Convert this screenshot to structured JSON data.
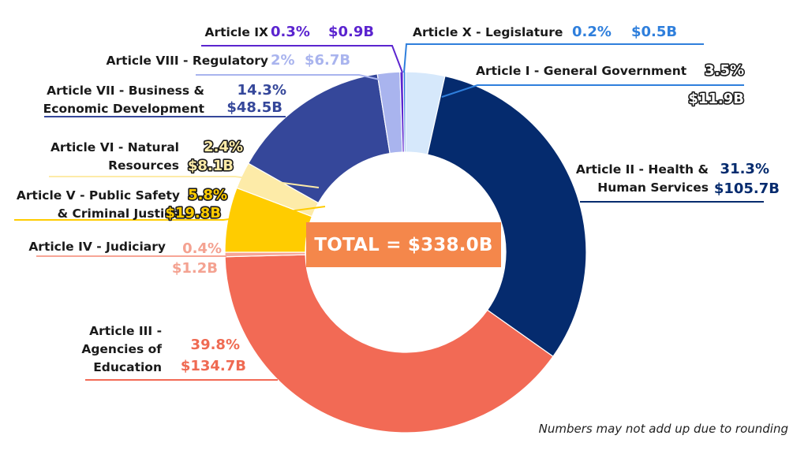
{
  "chart_data": {
    "type": "pie",
    "variant": "donut",
    "total_label": "TOTAL = $338.0B",
    "footnote": "Numbers may not add up due to rounding",
    "slices": [
      {
        "key": "article_i",
        "label_lines": [
          "Article I - General Government"
        ],
        "percent": 3.5,
        "percent_text": "3.5%",
        "amount_text": "$11.9B",
        "color": "#d6e8fb",
        "label_color": "#ffffff",
        "outlined": true
      },
      {
        "key": "article_ii",
        "label_lines": [
          "Article II - Health &",
          "Human Services"
        ],
        "percent": 31.3,
        "percent_text": "31.3%",
        "amount_text": "$105.7B",
        "color": "#052b6e",
        "label_color": "#052b6e",
        "outlined": false
      },
      {
        "key": "article_iii",
        "label_lines": [
          "Article III -",
          "Agencies of",
          "Education"
        ],
        "percent": 39.8,
        "percent_text": "39.8%",
        "amount_text": "$134.7B",
        "color": "#f26a55",
        "label_color": "#ef6a52",
        "outlined": false
      },
      {
        "key": "article_iv",
        "label_lines": [
          "Article IV - Judiciary"
        ],
        "percent": 0.4,
        "percent_text": "0.4%",
        "amount_text": "$1.2B",
        "color": "#f7a596",
        "label_color": "#f4a291",
        "outlined": false
      },
      {
        "key": "article_v",
        "label_lines": [
          "Article V - Public Safety",
          "& Criminal Justice"
        ],
        "percent": 5.8,
        "percent_text": "5.8%",
        "amount_text": "$19.8B",
        "color": "#ffcc00",
        "label_color": "#ffcc00",
        "outlined": true
      },
      {
        "key": "article_vi",
        "label_lines": [
          "Article VI - Natural",
          "Resources"
        ],
        "percent": 2.4,
        "percent_text": "2.4%",
        "amount_text": "$8.1B",
        "color": "#fdeba8",
        "label_color": "#fdeba8",
        "outlined": true
      },
      {
        "key": "article_vii",
        "label_lines": [
          "Article VII - Business &",
          "Economic Development"
        ],
        "percent": 14.3,
        "percent_text": "14.3%",
        "amount_text": "$48.5B",
        "color": "#35479a",
        "label_color": "#35479a",
        "outlined": false
      },
      {
        "key": "article_viii",
        "label_lines": [
          "Article VIII - Regulatory"
        ],
        "percent": 2.0,
        "percent_text": "2%",
        "amount_text": "$6.7B",
        "color": "#a9b4ee",
        "label_color": "#a9b4ee",
        "outlined": false
      },
      {
        "key": "article_ix",
        "label_lines": [
          "Article IX"
        ],
        "percent": 0.3,
        "percent_text": "0.3%",
        "amount_text": "$0.9B",
        "color": "#5b24cf",
        "label_color": "#5b24cf",
        "outlined": false
      },
      {
        "key": "article_x",
        "label_lines": [
          "Article X - Legislature"
        ],
        "percent": 0.2,
        "percent_text": "0.2%",
        "amount_text": "$0.5B",
        "color": "#2f7fdc",
        "label_color": "#2f7fdc",
        "outlined": false
      }
    ]
  }
}
